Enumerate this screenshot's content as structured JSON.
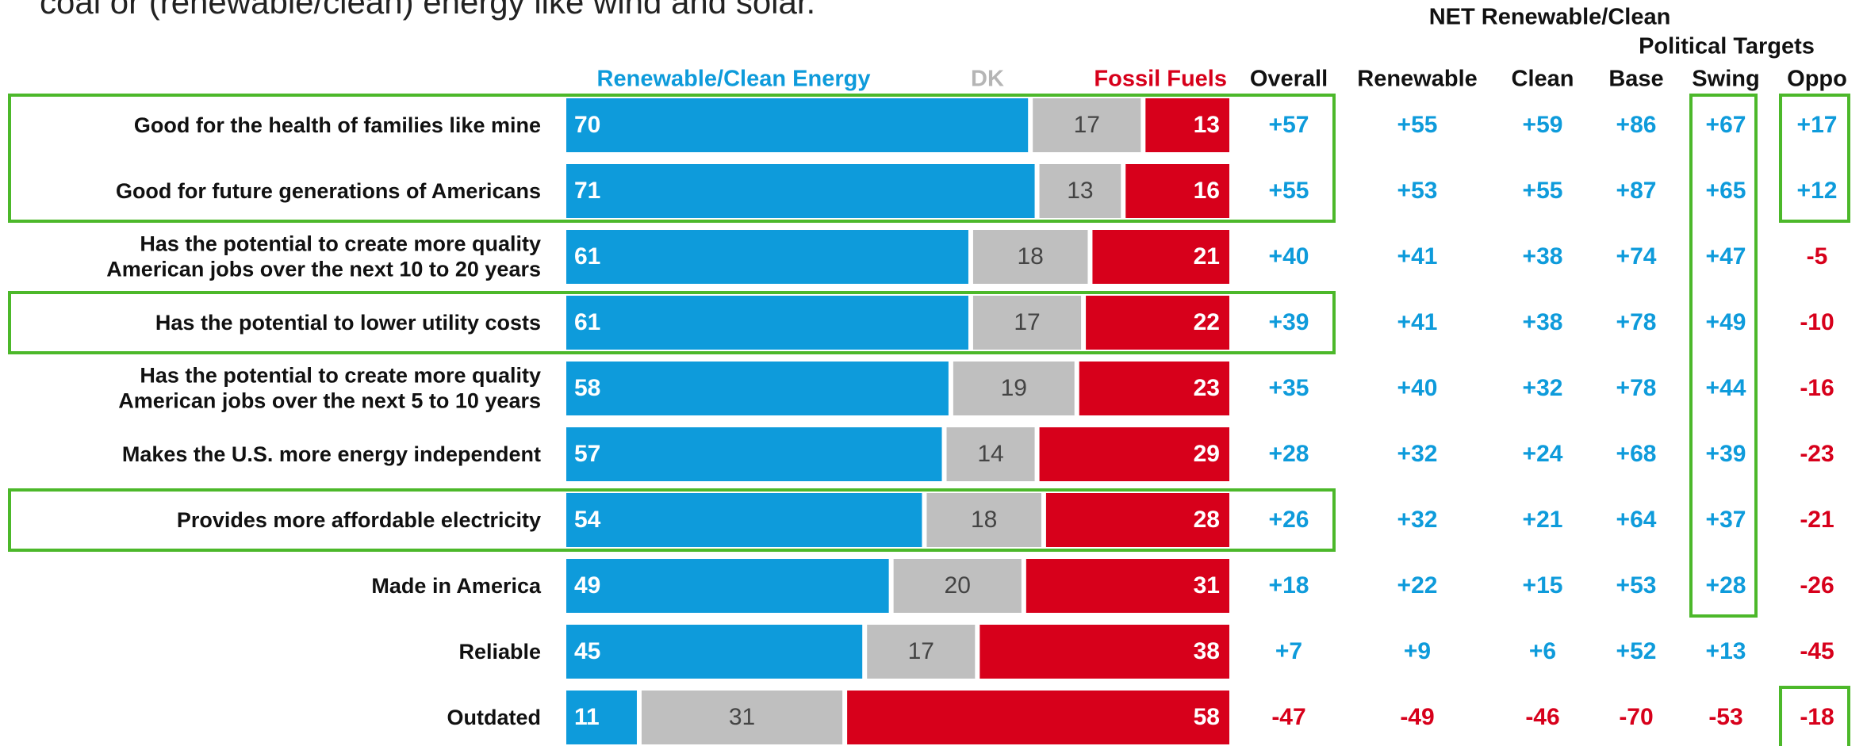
{
  "intro_text": "coal or (renewable/clean) energy like wind and solar.",
  "chart_data": {
    "type": "stacked_barh",
    "categories": [
      "Good for the health of families like mine",
      "Good for future generations of Americans",
      "Has the potential to create more quality\nAmerican jobs over the next 10 to 20 years",
      "Has the potential to lower utility costs",
      "Has the potential to create more quality\nAmerican jobs over the next 5 to 10 years",
      "Makes the U.S. more energy independent",
      "Provides more affordable electricity",
      "Made in America",
      "Reliable",
      "Outdated"
    ],
    "xlim": [
      0,
      100
    ],
    "series": [
      {
        "name": "Renewable/Clean Energy",
        "color": "#0e9bdb",
        "values": [
          70,
          71,
          61,
          61,
          58,
          57,
          54,
          49,
          45,
          11
        ]
      },
      {
        "name": "DK",
        "color": "#bfbfbf",
        "values": [
          17,
          13,
          18,
          17,
          19,
          14,
          18,
          20,
          17,
          31
        ]
      },
      {
        "name": "Fossil Fuels",
        "color": "#d7001b",
        "values": [
          13,
          16,
          21,
          22,
          23,
          29,
          28,
          31,
          38,
          58
        ]
      }
    ]
  },
  "net_table": {
    "group_headers": [
      "NET Renewable/Clean",
      "Political Targets"
    ],
    "columns": [
      "Overall",
      "Renewable",
      "Clean",
      "Base",
      "Swing",
      "Oppo"
    ],
    "rows": [
      [
        "+57",
        "+55",
        "+59",
        "+86",
        "+67",
        "+17"
      ],
      [
        "+55",
        "+53",
        "+55",
        "+87",
        "+65",
        "+12"
      ],
      [
        "+40",
        "+41",
        "+38",
        "+74",
        "+47",
        "-5"
      ],
      [
        "+39",
        "+41",
        "+38",
        "+78",
        "+49",
        "-10"
      ],
      [
        "+35",
        "+40",
        "+32",
        "+78",
        "+44",
        "-16"
      ],
      [
        "+28",
        "+32",
        "+24",
        "+68",
        "+39",
        "-23"
      ],
      [
        "+26",
        "+32",
        "+21",
        "+64",
        "+37",
        "-21"
      ],
      [
        "+18",
        "+22",
        "+15",
        "+53",
        "+28",
        "-26"
      ],
      [
        "+7",
        "+9",
        "+6",
        "+52",
        "+13",
        "-45"
      ],
      [
        "-47",
        "-49",
        "-46",
        "-70",
        "-53",
        "-18"
      ]
    ]
  }
}
